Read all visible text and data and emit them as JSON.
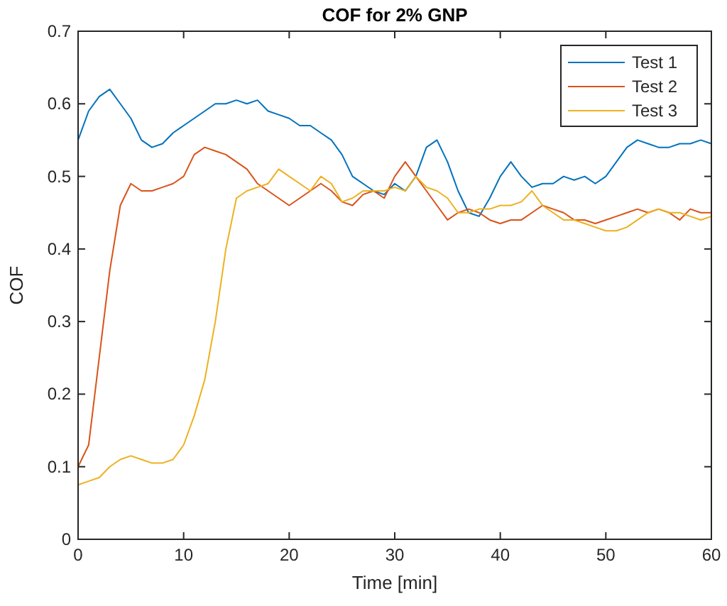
{
  "chart_data": {
    "type": "line",
    "title": "COF for 2% GNP",
    "xlabel": "Time [min]",
    "ylabel": "COF",
    "x": [
      0,
      1,
      2,
      3,
      4,
      5,
      6,
      7,
      8,
      9,
      10,
      11,
      12,
      13,
      14,
      15,
      16,
      17,
      18,
      19,
      20,
      21,
      22,
      23,
      24,
      25,
      26,
      27,
      28,
      29,
      30,
      31,
      32,
      33,
      34,
      35,
      36,
      37,
      38,
      39,
      40,
      41,
      42,
      43,
      44,
      45,
      46,
      47,
      48,
      49,
      50,
      51,
      52,
      53,
      54,
      55,
      56,
      57,
      58,
      59,
      60
    ],
    "series": [
      {
        "name": "Test 1",
        "color": "#0072bd",
        "values": [
          0.55,
          0.59,
          0.61,
          0.62,
          0.6,
          0.58,
          0.55,
          0.54,
          0.545,
          0.56,
          0.57,
          0.58,
          0.59,
          0.6,
          0.6,
          0.605,
          0.6,
          0.605,
          0.59,
          0.585,
          0.58,
          0.57,
          0.57,
          0.56,
          0.55,
          0.53,
          0.5,
          0.49,
          0.48,
          0.475,
          0.49,
          0.48,
          0.5,
          0.54,
          0.55,
          0.52,
          0.48,
          0.45,
          0.445,
          0.47,
          0.5,
          0.52,
          0.5,
          0.485,
          0.49,
          0.49,
          0.5,
          0.495,
          0.5,
          0.49,
          0.5,
          0.52,
          0.54,
          0.55,
          0.545,
          0.54,
          0.54,
          0.545,
          0.545,
          0.55,
          0.545
        ]
      },
      {
        "name": "Test 2",
        "color": "#d95319",
        "values": [
          0.1,
          0.13,
          0.25,
          0.37,
          0.46,
          0.49,
          0.48,
          0.48,
          0.485,
          0.49,
          0.5,
          0.53,
          0.54,
          0.535,
          0.53,
          0.52,
          0.51,
          0.49,
          0.48,
          0.47,
          0.46,
          0.47,
          0.48,
          0.49,
          0.48,
          0.465,
          0.46,
          0.475,
          0.48,
          0.47,
          0.5,
          0.52,
          0.5,
          0.48,
          0.46,
          0.44,
          0.45,
          0.455,
          0.45,
          0.44,
          0.435,
          0.44,
          0.44,
          0.45,
          0.46,
          0.455,
          0.45,
          0.44,
          0.44,
          0.435,
          0.44,
          0.445,
          0.45,
          0.455,
          0.45,
          0.455,
          0.45,
          0.44,
          0.455,
          0.45,
          0.45
        ]
      },
      {
        "name": "Test 3",
        "color": "#edb120",
        "values": [
          0.075,
          0.08,
          0.085,
          0.1,
          0.11,
          0.115,
          0.11,
          0.105,
          0.105,
          0.11,
          0.13,
          0.17,
          0.22,
          0.3,
          0.4,
          0.47,
          0.48,
          0.485,
          0.49,
          0.51,
          0.5,
          0.49,
          0.48,
          0.5,
          0.49,
          0.465,
          0.47,
          0.48,
          0.48,
          0.48,
          0.485,
          0.48,
          0.5,
          0.485,
          0.48,
          0.47,
          0.45,
          0.45,
          0.455,
          0.455,
          0.46,
          0.46,
          0.465,
          0.48,
          0.46,
          0.45,
          0.44,
          0.44,
          0.435,
          0.43,
          0.425,
          0.425,
          0.43,
          0.44,
          0.45,
          0.455,
          0.45,
          0.45,
          0.445,
          0.44,
          0.445
        ]
      }
    ],
    "xlim": [
      0,
      60
    ],
    "xticks": [
      0,
      10,
      20,
      30,
      40,
      50,
      60
    ],
    "ylim": [
      0,
      0.7
    ],
    "yticks": [
      0,
      0.1,
      0.2,
      0.3,
      0.4,
      0.5,
      0.6,
      0.7
    ],
    "legend": "top right",
    "line_style": "solid",
    "marker": "none",
    "grid": false
  }
}
